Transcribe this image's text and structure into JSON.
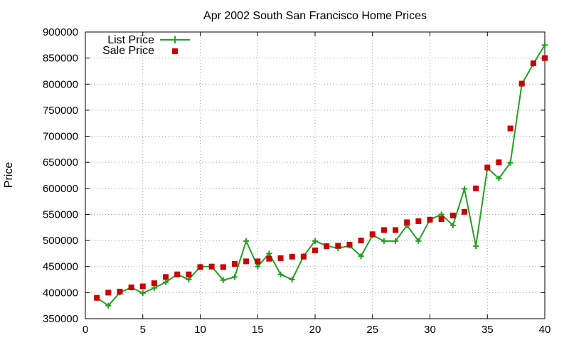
{
  "chart_data": {
    "type": "line",
    "title": "Apr 2002 South San Francisco Home Prices",
    "xlabel": "",
    "ylabel": "Price",
    "xlim": [
      0,
      40
    ],
    "ylim": [
      350000,
      900000
    ],
    "x_ticks": [
      0,
      5,
      10,
      15,
      20,
      25,
      30,
      35,
      40
    ],
    "y_ticks": [
      350000,
      400000,
      450000,
      500000,
      550000,
      600000,
      650000,
      700000,
      750000,
      800000,
      850000,
      900000
    ],
    "grid": true,
    "legend_position": "top-left",
    "series": [
      {
        "name": "List Price",
        "style": "line-with-plus-markers",
        "color": "#22a022",
        "x": [
          1,
          2,
          3,
          4,
          5,
          6,
          7,
          8,
          9,
          10,
          11,
          12,
          13,
          14,
          15,
          16,
          17,
          18,
          19,
          20,
          21,
          22,
          23,
          24,
          25,
          26,
          27,
          28,
          29,
          30,
          31,
          32,
          33,
          34,
          35,
          36,
          37,
          38,
          39,
          40
        ],
        "values": [
          390000,
          375000,
          400000,
          410000,
          399000,
          409000,
          420000,
          435000,
          425000,
          450000,
          450000,
          424000,
          430000,
          499000,
          450000,
          475000,
          435000,
          425000,
          470000,
          499000,
          490000,
          485000,
          490000,
          470000,
          510000,
          499000,
          499000,
          529000,
          499000,
          540000,
          550000,
          529000,
          599000,
          489000,
          639000,
          619000,
          649000,
          800000,
          839000,
          875000
        ]
      },
      {
        "name": "Sale Price",
        "style": "square-markers",
        "color": "#cc0000",
        "x": [
          1,
          2,
          3,
          4,
          5,
          6,
          7,
          8,
          9,
          10,
          11,
          12,
          13,
          14,
          15,
          16,
          17,
          18,
          19,
          20,
          21,
          22,
          23,
          24,
          25,
          26,
          27,
          28,
          29,
          30,
          31,
          32,
          33,
          34,
          35,
          36,
          37,
          38,
          39,
          40
        ],
        "values": [
          390000,
          400000,
          402000,
          410000,
          412000,
          418000,
          430000,
          435000,
          435000,
          449000,
          450000,
          449000,
          455000,
          460000,
          460000,
          465000,
          466000,
          469000,
          469000,
          481000,
          489000,
          490000,
          492000,
          500000,
          512000,
          520000,
          520000,
          535000,
          537000,
          540000,
          541000,
          548000,
          555000,
          600000,
          640000,
          650000,
          715000,
          801000,
          840000,
          850000
        ]
      }
    ]
  }
}
